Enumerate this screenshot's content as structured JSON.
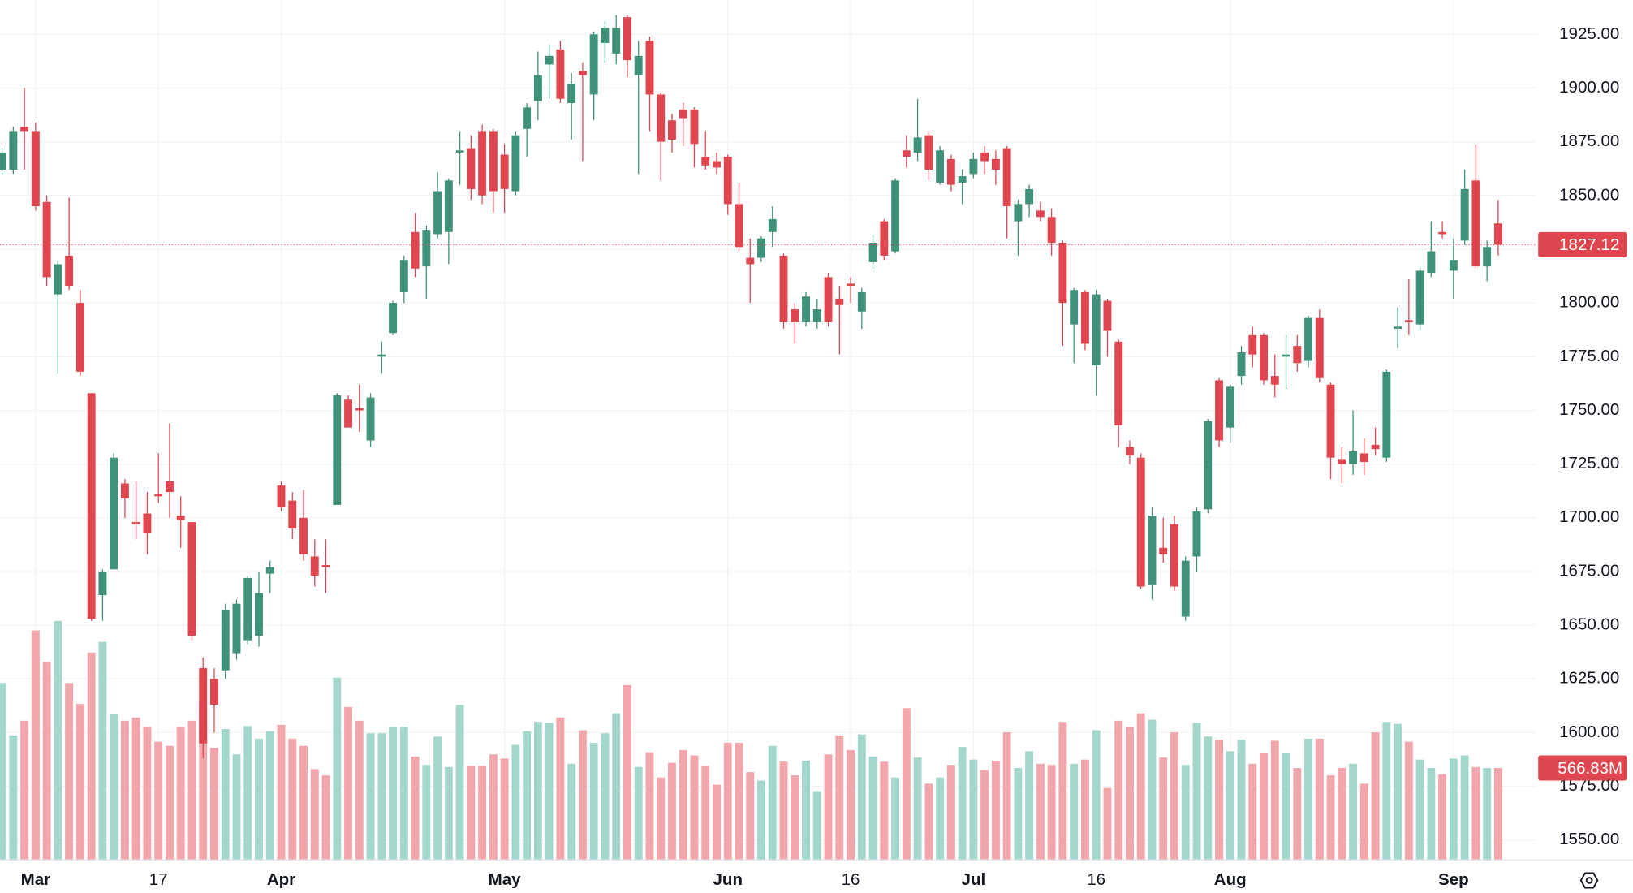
{
  "chart_data": {
    "type": "candlestick",
    "colors": {
      "up": "#3f917a",
      "down": "#e0464f",
      "volume_up": "#a3d7cb",
      "volume_down": "#f0a6ab",
      "grid": "#f2f3f5"
    },
    "grid": true,
    "xlim": [
      -0.19,
      137.4
    ],
    "xticks": [
      {
        "value": 3,
        "label": "Mar"
      },
      {
        "value": 14,
        "label": "17"
      },
      {
        "value": 25,
        "label": "Apr"
      },
      {
        "value": 45,
        "label": "May"
      },
      {
        "value": 65,
        "label": "Jun"
      },
      {
        "value": 76,
        "label": "16"
      },
      {
        "value": 87,
        "label": "Jul"
      },
      {
        "value": 98,
        "label": "16"
      },
      {
        "value": 110,
        "label": "Aug"
      },
      {
        "value": 130,
        "label": "Sep"
      }
    ],
    "ylim": [
      1541,
      1941
    ],
    "yticks": [
      {
        "value": 1550,
        "label": "1550.00"
      },
      {
        "value": 1575,
        "label": "1575.00"
      },
      {
        "value": 1600,
        "label": "1600.00"
      },
      {
        "value": 1625,
        "label": "1625.00"
      },
      {
        "value": 1650,
        "label": "1650.00"
      },
      {
        "value": 1675,
        "label": "1675.00"
      },
      {
        "value": 1700,
        "label": "1700.00"
      },
      {
        "value": 1725,
        "label": "1725.00"
      },
      {
        "value": 1750,
        "label": "1750.00"
      },
      {
        "value": 1775,
        "label": "1775.00"
      },
      {
        "value": 1800,
        "label": "1800.00"
      },
      {
        "value": 1825,
        "label": "1825.00"
      },
      {
        "value": 1850,
        "label": "1850.00"
      },
      {
        "value": 1875,
        "label": "1875.00"
      },
      {
        "value": 1900,
        "label": "1900.00"
      },
      {
        "value": 1925,
        "label": "1925.00"
      }
    ],
    "candles": {
      "open": [
        1862,
        1862,
        1882,
        1880,
        1847,
        1804,
        1822,
        1800,
        1758,
        1664,
        1676,
        1716,
        1698,
        1702,
        1711,
        1717,
        1701,
        1698,
        1630,
        1625,
        1629,
        1637,
        1643,
        1645,
        1674,
        1715,
        1708,
        1700,
        1682,
        1678,
        1706,
        1755,
        1751,
        1736,
        1775,
        1786,
        1805,
        1833,
        1817,
        1832,
        1833,
        1870,
        1872,
        1880,
        1880,
        1869,
        1852,
        1881,
        1894,
        1911,
        1918,
        1893,
        1908,
        1897,
        1921,
        1916,
        1933,
        1906,
        1922,
        1897,
        1885,
        1890,
        1890,
        1868,
        1866,
        1868,
        1846,
        1821,
        1821,
        1833,
        1822,
        1797,
        1791,
        1791,
        1812,
        1802,
        1809,
        1796,
        1819,
        1838,
        1824,
        1871,
        1870,
        1878,
        1856,
        1867,
        1856,
        1860,
        1870,
        1867,
        1872,
        1838,
        1846,
        1843,
        1840,
        1828,
        1790,
        1805,
        1771,
        1801,
        1782,
        1733,
        1728,
        1669,
        1686,
        1697,
        1654,
        1682,
        1704,
        1764,
        1742,
        1766,
        1785,
        1785,
        1766,
        1775,
        1780,
        1773,
        1793,
        1762,
        1727,
        1725,
        1730,
        1734,
        1728,
        1788,
        1792,
        1790,
        1814,
        1833,
        1815,
        1829,
        1857,
        1817,
        1837
      ],
      "high": [
        1872,
        1882,
        1900,
        1884,
        1850,
        1820,
        1849,
        1806,
        1758,
        1676,
        1730,
        1718,
        1717,
        1712,
        1730,
        1744,
        1710,
        1698,
        1635,
        1630,
        1660,
        1662,
        1673,
        1675,
        1680,
        1717,
        1712,
        1713,
        1690,
        1690,
        1758,
        1757,
        1762,
        1758,
        1782,
        1801,
        1822,
        1842,
        1836,
        1861,
        1858,
        1880,
        1878,
        1883,
        1881,
        1874,
        1880,
        1893,
        1917,
        1920,
        1922,
        1907,
        1912,
        1926,
        1931,
        1934,
        1934,
        1922,
        1924,
        1898,
        1888,
        1893,
        1891,
        1880,
        1870,
        1869,
        1856,
        1830,
        1831,
        1845,
        1823,
        1800,
        1805,
        1802,
        1814,
        1808,
        1812,
        1807,
        1832,
        1839,
        1858,
        1878,
        1895,
        1880,
        1873,
        1869,
        1862,
        1870,
        1873,
        1871,
        1873,
        1848,
        1855,
        1847,
        1844,
        1829,
        1807,
        1806,
        1806,
        1802,
        1783,
        1736,
        1730,
        1705,
        1700,
        1701,
        1682,
        1705,
        1746,
        1765,
        1762,
        1780,
        1789,
        1786,
        1776,
        1785,
        1785,
        1794,
        1797,
        1763,
        1733,
        1750,
        1737,
        1742,
        1769,
        1798,
        1811,
        1817,
        1838,
        1838,
        1830,
        1862,
        1874,
        1829,
        1848
      ],
      "low": [
        1860,
        1860,
        1862,
        1843,
        1808,
        1767,
        1806,
        1766,
        1652,
        1652,
        1676,
        1700,
        1690,
        1683,
        1707,
        1700,
        1686,
        1643,
        1588,
        1600,
        1625,
        1634,
        1641,
        1640,
        1665,
        1703,
        1690,
        1680,
        1668,
        1665,
        1706,
        1742,
        1740,
        1733,
        1767,
        1785,
        1800,
        1812,
        1802,
        1830,
        1818,
        1855,
        1848,
        1846,
        1842,
        1842,
        1850,
        1868,
        1885,
        1895,
        1893,
        1876,
        1866,
        1885,
        1912,
        1911,
        1905,
        1860,
        1880,
        1857,
        1870,
        1873,
        1863,
        1862,
        1860,
        1841,
        1824,
        1800,
        1819,
        1826,
        1788,
        1781,
        1789,
        1788,
        1789,
        1776,
        1800,
        1788,
        1816,
        1820,
        1823,
        1863,
        1866,
        1857,
        1855,
        1852,
        1846,
        1858,
        1860,
        1855,
        1830,
        1822,
        1840,
        1838,
        1822,
        1780,
        1772,
        1778,
        1757,
        1775,
        1733,
        1725,
        1667,
        1662,
        1679,
        1666,
        1652,
        1675,
        1702,
        1733,
        1735,
        1762,
        1770,
        1762,
        1756,
        1760,
        1768,
        1770,
        1763,
        1718,
        1716,
        1720,
        1720,
        1729,
        1726,
        1779,
        1785,
        1787,
        1812,
        1830,
        1802,
        1827,
        1816,
        1810,
        1822
      ],
      "close": [
        1870,
        1880,
        1880,
        1845,
        1812,
        1818,
        1808,
        1768,
        1653,
        1675,
        1728,
        1709,
        1697,
        1693,
        1710,
        1712,
        1699,
        1645,
        1595,
        1613,
        1657,
        1660,
        1672,
        1665,
        1677,
        1705,
        1695,
        1683,
        1673,
        1677,
        1757,
        1742,
        1750,
        1756,
        1776,
        1800,
        1820,
        1816,
        1834,
        1852,
        1857,
        1871,
        1853,
        1850,
        1852,
        1853,
        1878,
        1891,
        1906,
        1915,
        1895,
        1902,
        1906,
        1925,
        1928,
        1928,
        1913,
        1915,
        1897,
        1875,
        1876,
        1886,
        1874,
        1864,
        1863,
        1846,
        1826,
        1818,
        1830,
        1839,
        1791,
        1791,
        1803,
        1797,
        1791,
        1799,
        1808,
        1805,
        1828,
        1822,
        1857,
        1868,
        1877,
        1862,
        1871,
        1855,
        1859,
        1867,
        1866,
        1862,
        1845,
        1846,
        1853,
        1840,
        1828,
        1800,
        1806,
        1781,
        1804,
        1787,
        1743,
        1729,
        1668,
        1701,
        1683,
        1668,
        1680,
        1703,
        1745,
        1736,
        1761,
        1777,
        1776,
        1764,
        1762,
        1776,
        1772,
        1793,
        1765,
        1728,
        1725,
        1731,
        1726,
        1732,
        1768,
        1789,
        1791,
        1815,
        1824,
        1832,
        1820,
        1853,
        1817,
        1826,
        1827.12
      ]
    },
    "volume": {
      "ylim": [
        0,
        5330
      ],
      "last_label": "566.83M",
      "values": [
        1094,
        769,
        860,
        1420,
        1225,
        1479,
        1094,
        964,
        1283,
        1349,
        899,
        860,
        880,
        821,
        730,
        704,
        821,
        860,
        964,
        691,
        808,
        651,
        827,
        749,
        795,
        834,
        749,
        704,
        560,
        521,
        1127,
        945,
        860,
        782,
        782,
        821,
        821,
        638,
        586,
        762,
        573,
        958,
        580,
        580,
        651,
        625,
        710,
        795,
        853,
        847,
        880,
        593,
        801,
        723,
        782,
        906,
        1081,
        573,
        664,
        508,
        599,
        678,
        645,
        580,
        463,
        723,
        723,
        541,
        489,
        704,
        606,
        521,
        612,
        423,
        651,
        769,
        678,
        775,
        638,
        606,
        508,
        938,
        632,
        469,
        508,
        586,
        697,
        619,
        554,
        612,
        788,
        567,
        671,
        593,
        586,
        853,
        593,
        619,
        801,
        443,
        860,
        821,
        906,
        866,
        632,
        788,
        586,
        847,
        762,
        743,
        671,
        743,
        593,
        658,
        736,
        658,
        567,
        749,
        749,
        521,
        567,
        593,
        469,
        788,
        853,
        840,
        730,
        619,
        567,
        528,
        625,
        645,
        573,
        567,
        566.83
      ]
    }
  }
}
